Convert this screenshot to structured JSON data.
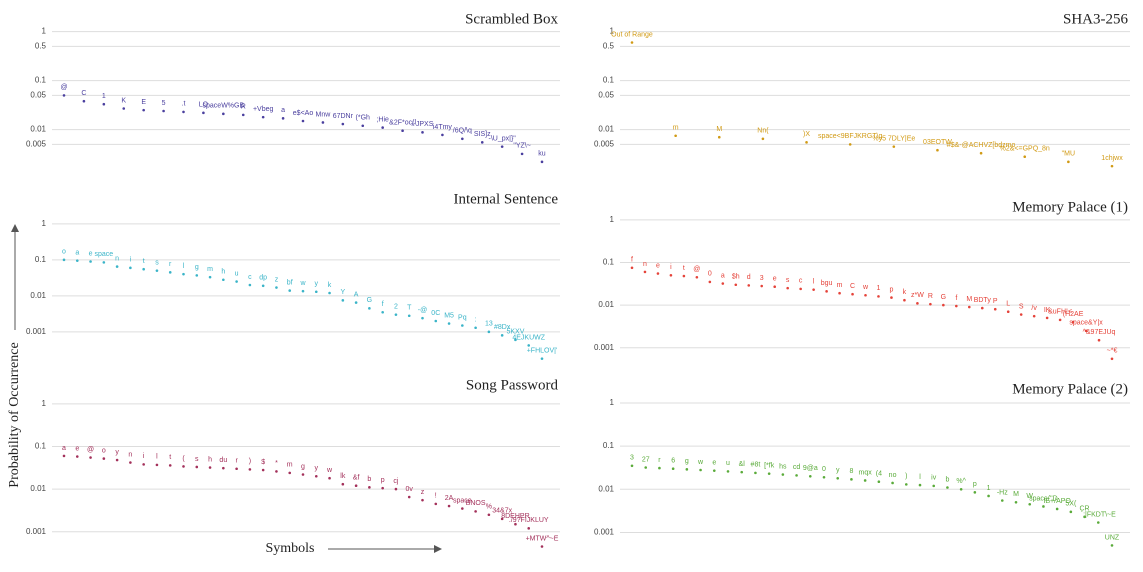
{
  "y_label": "Probability of Occurrence",
  "x_label": "Symbols",
  "chart_data": [
    {
      "type": "scatter",
      "title": "Scrambled Box",
      "color": "#4a3f9e",
      "log": true,
      "grid": true,
      "ylim": [
        0.0015,
        1.5
      ],
      "yticks": [
        1,
        0.5,
        0.1,
        0.05,
        0.01,
        0.005
      ],
      "categories": [
        "@",
        "C",
        "1",
        "K",
        "E",
        "5",
        ".t",
        "LO",
        "spaceW%GB",
        "R",
        "+Vbeg",
        "a",
        "e$<Ao",
        "Mnw",
        "67DNr",
        "(*Gh",
        ";Hie",
        "&2F*oc(l",
        "/-JPXS",
        "i4Tmy",
        "/6Q/\\q",
        "SIS]z",
        "-\\U_px|}\"",
        "\"YZ\\~",
        "ku"
      ],
      "values": [
        0.05,
        0.038,
        0.033,
        0.027,
        0.025,
        0.024,
        0.023,
        0.022,
        0.021,
        0.02,
        0.018,
        0.017,
        0.015,
        0.014,
        0.013,
        0.012,
        0.011,
        0.0095,
        0.0088,
        0.0078,
        0.0065,
        0.0055,
        0.0045,
        0.0032,
        0.0022
      ]
    },
    {
      "type": "scatter",
      "title": "Internal Sentence",
      "color": "#3ab4c8",
      "log": true,
      "grid": true,
      "ylim": [
        0.00012,
        2
      ],
      "yticks": [
        1,
        0.1,
        0.01,
        0.001
      ],
      "categories": [
        "o",
        "a",
        "e",
        "space",
        "n",
        "i",
        "t",
        "s",
        "r",
        "l",
        "g",
        "m",
        "h",
        "u",
        "c",
        "dp",
        "z",
        "bf",
        "w",
        "y",
        "k",
        "Y",
        "A",
        "G",
        "f",
        "2",
        "T",
        "-@",
        "0C",
        "M5",
        "Pq",
        ":",
        "13",
        "#8Dx",
        "5KXV",
        "4EJKUWZ",
        "+FHLOV|'"
      ],
      "values": [
        0.1,
        0.095,
        0.09,
        0.085,
        0.065,
        0.06,
        0.055,
        0.05,
        0.045,
        0.04,
        0.037,
        0.033,
        0.028,
        0.025,
        0.02,
        0.019,
        0.017,
        0.014,
        0.0135,
        0.013,
        0.012,
        0.0075,
        0.0065,
        0.0045,
        0.0035,
        0.003,
        0.0028,
        0.0024,
        0.002,
        0.0017,
        0.0015,
        0.0013,
        0.001,
        0.0008,
        0.0006,
        0.00042,
        0.00018
      ]
    },
    {
      "type": "scatter",
      "title": "Song Password",
      "color": "#a3305a",
      "log": true,
      "grid": true,
      "ylim": [
        0.0003,
        2
      ],
      "yticks": [
        1,
        0.1,
        0.01,
        0.001
      ],
      "categories": [
        "a",
        "e",
        "@",
        "o",
        "y",
        "n",
        "i",
        "l",
        "t",
        "(",
        "s",
        "h",
        "du",
        "r",
        ")",
        "$",
        "*",
        "m",
        "g",
        "y",
        "w",
        "lk",
        "&f",
        "b",
        "p",
        "cj",
        "0v",
        "z",
        "!",
        "2A",
        "space",
        "BNOS",
        "%",
        "34&7x",
        "8DEHPR",
        "./9?FIJKLUY",
        "+MTW^~E"
      ],
      "values": [
        0.06,
        0.058,
        0.055,
        0.052,
        0.048,
        0.042,
        0.038,
        0.037,
        0.036,
        0.034,
        0.033,
        0.032,
        0.031,
        0.03,
        0.029,
        0.028,
        0.026,
        0.024,
        0.022,
        0.02,
        0.018,
        0.013,
        0.012,
        0.011,
        0.0105,
        0.01,
        0.0065,
        0.0055,
        0.0045,
        0.004,
        0.0035,
        0.003,
        0.0025,
        0.002,
        0.0015,
        0.0012,
        0.00045
      ]
    },
    {
      "type": "scatter",
      "title": "SHA3-256",
      "color": "#d19a14",
      "log": true,
      "grid": true,
      "ylim": [
        0.0015,
        1.5
      ],
      "yticks": [
        1,
        0.5,
        0.1,
        0.05,
        0.01,
        0.005
      ],
      "categories": [
        "Out of Range",
        "m",
        "M",
        "Nn(",
        ")X",
        "space<9BFJKRGT\\q",
        "%y5 7DLY|Ee",
        "03EOTW",
        "#$&-@ACHVZ[bdzmo",
        "%2&<=GPQ_8n",
        "\"MU",
        "1chjwx"
      ],
      "values": [
        0.6,
        0.0075,
        0.007,
        0.0065,
        0.0055,
        0.005,
        0.0045,
        0.0038,
        0.0033,
        0.0028,
        0.0022,
        0.0018
      ]
    },
    {
      "type": "scatter",
      "title": "Memory Palace (1)",
      "color": "#e5433a",
      "log": true,
      "grid": true,
      "ylim": [
        0.0003,
        2
      ],
      "yticks": [
        1,
        0.1,
        0.01,
        0.001
      ],
      "categories": [
        "f",
        "n",
        "e",
        "i",
        "t",
        "@",
        "0",
        "a",
        "$h",
        "d",
        "3",
        "e",
        "s",
        "c",
        "l",
        "bgu",
        "m",
        "C",
        "w",
        "1",
        "p",
        "k",
        "z*W",
        "R",
        "G",
        "f",
        "M",
        "BDTy",
        "P",
        "L",
        "S",
        "/v",
        "IK",
        "&uFH!<",
        "(H2AE",
        "space&Y|x",
        "^&97EJUq",
        "~*€"
      ],
      "values": [
        0.075,
        0.06,
        0.055,
        0.05,
        0.048,
        0.045,
        0.035,
        0.032,
        0.03,
        0.029,
        0.028,
        0.027,
        0.025,
        0.024,
        0.023,
        0.021,
        0.019,
        0.018,
        0.017,
        0.016,
        0.015,
        0.013,
        0.011,
        0.0105,
        0.01,
        0.0095,
        0.009,
        0.0085,
        0.008,
        0.007,
        0.006,
        0.0055,
        0.005,
        0.0045,
        0.004,
        0.0025,
        0.0015,
        0.00055
      ]
    },
    {
      "type": "scatter",
      "title": "Memory Palace (2)",
      "color": "#5aab3a",
      "log": true,
      "grid": true,
      "ylim": [
        0.0003,
        2
      ],
      "yticks": [
        1,
        0.1,
        0.01,
        0.001
      ],
      "categories": [
        "3",
        "27",
        "r",
        "6",
        "g",
        "w",
        "e",
        "u",
        "&l",
        "#8t",
        "[*fk",
        "hs",
        "cd",
        "9@a",
        "0",
        "y",
        "8",
        "mqx",
        "(4",
        "no",
        ")",
        "l",
        "iv",
        "b",
        "%^",
        "p",
        "1",
        "-Hz",
        "M",
        "W",
        "space(\"D",
        "IE+/APO",
        "5X(",
        "CR",
        "`:|FKDT\\~E",
        "UNZ"
      ],
      "values": [
        0.035,
        0.032,
        0.031,
        0.03,
        0.029,
        0.028,
        0.027,
        0.026,
        0.025,
        0.024,
        0.023,
        0.022,
        0.021,
        0.02,
        0.019,
        0.018,
        0.017,
        0.016,
        0.015,
        0.014,
        0.013,
        0.0125,
        0.012,
        0.011,
        0.01,
        0.0085,
        0.007,
        0.0055,
        0.005,
        0.0045,
        0.004,
        0.0035,
        0.003,
        0.0023,
        0.0017,
        0.0005
      ]
    }
  ]
}
